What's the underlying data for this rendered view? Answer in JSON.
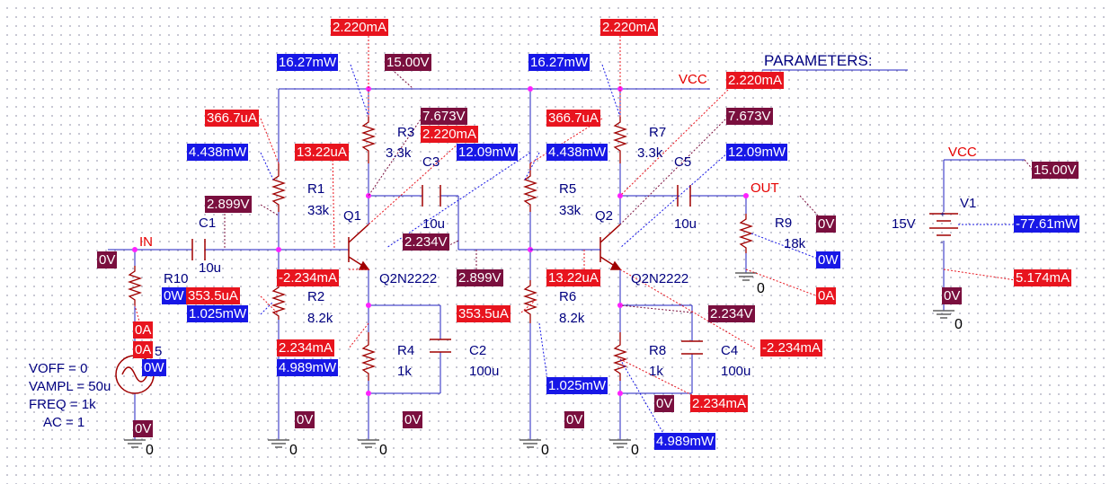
{
  "schematic": {
    "colors": {
      "wire": "#2020c0",
      "component": "#a00000",
      "ground": "#606060",
      "current_tag": "#e8141e",
      "power_tag": "#1717e6",
      "voltage_tag": "#7a0f3e",
      "net_label": "#e60000"
    },
    "params_header": "PARAMETERS:",
    "net_labels": {
      "vcc_top": "VCC",
      "vcc_supply": "VCC",
      "in": "IN",
      "out": "OUT"
    },
    "ground_label": "0",
    "components": {
      "R1": {
        "ref": "R1",
        "value": "33k"
      },
      "R2": {
        "ref": "R2",
        "value": "8.2k"
      },
      "R3": {
        "ref": "R3",
        "value": "3.3k"
      },
      "R4": {
        "ref": "R4",
        "value": "1k"
      },
      "R5": {
        "ref": "R5",
        "value": "33k"
      },
      "R6": {
        "ref": "R6",
        "value": "8.2k"
      },
      "R7": {
        "ref": "R7",
        "value": "3.3k"
      },
      "R8": {
        "ref": "R8",
        "value": "1k"
      },
      "R9": {
        "ref": "R9",
        "value": "18k"
      },
      "R10": {
        "ref": "R10"
      },
      "C1": {
        "ref": "C1",
        "value": "10u"
      },
      "C2": {
        "ref": "C2",
        "value": "100u"
      },
      "C3": {
        "ref": "C3",
        "value": "10u"
      },
      "C4": {
        "ref": "C4",
        "value": "100u"
      },
      "C5": {
        "ref": "C5",
        "value": "10u"
      },
      "Q1": {
        "ref": "Q1",
        "model": "Q2N2222"
      },
      "Q2": {
        "ref": "Q2",
        "model": "Q2N2222"
      },
      "V1": {
        "ref": "V1",
        "value": "15V",
        "plus": "+",
        "minus": "-"
      },
      "V5": {
        "ref_tail": "5",
        "params": [
          "VOFF = 0",
          "VAMPL = 50u",
          "FREQ = 1k",
          "AC = 1"
        ]
      }
    },
    "currents": {
      "r3_top": "2.220mA",
      "r7_top": "2.220mA",
      "q2_collector": "2.220mA",
      "q1_collector": "2.220mA",
      "r1": "366.7uA",
      "r5": "366.7uA",
      "q1_base": "13.22uA",
      "q2_base": "13.22uA",
      "q1_emitter": "-2.234mA",
      "r2": "353.5uA",
      "r6": "353.5uA",
      "r4": "2.234mA",
      "q2_emitter": "-2.234mA",
      "r8": "2.234mA",
      "r9": "0A",
      "v5_a": "0A",
      "v5_b": "0A",
      "v1": "5.174mA"
    },
    "powers": {
      "r3": "16.27mW",
      "r7": "16.27mW",
      "r1": "4.438mW",
      "r5": "4.438mW",
      "q1": "12.09mW",
      "q2": "12.09mW",
      "r10": "0W",
      "r2": "1.025mW",
      "r6": "1.025mW",
      "r4": "4.989mW",
      "r8": "4.989mW",
      "v5": "0W",
      "r9": "0W",
      "v1": "-77.61mW"
    },
    "voltages": {
      "vcc": "15.00V",
      "v1_plus": "15.00V",
      "q1_c": "7.673V",
      "q2_c": "7.673V",
      "q1_b": "2.899V",
      "q2_b": "2.899V",
      "q1_e": "2.234V",
      "q2_e": "2.234V",
      "in": "0V",
      "out": "0V",
      "gnd_r2": "0V",
      "gnd_r4": "0V",
      "gnd_r6": "0V",
      "gnd_r8": "0V",
      "v5_bottom": "0V",
      "v1_minus": "0V"
    }
  }
}
